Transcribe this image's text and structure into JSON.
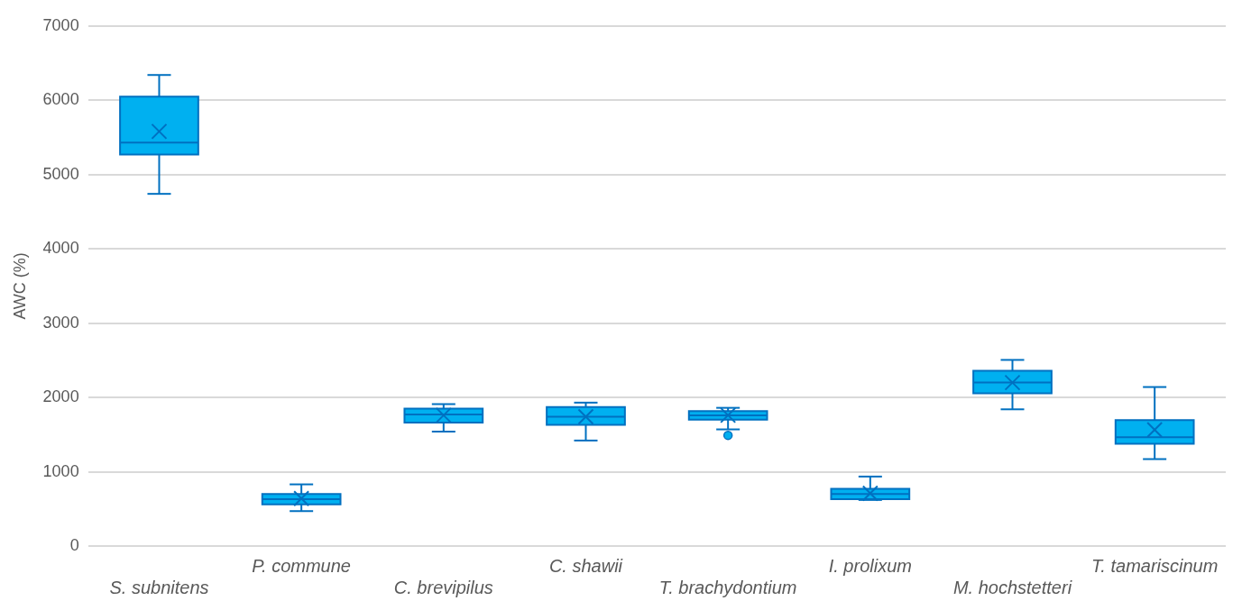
{
  "chart_data": {
    "type": "box",
    "ylabel": "AWC (%)",
    "categories": [
      "S. subnitens",
      "P. commune",
      "C. brevipilus",
      "C. shawii",
      "T. brachydontium",
      "I. prolixum",
      "M. hochstetteri",
      "T. tamariscinum"
    ],
    "boxes": [
      {
        "low": 4740,
        "q1": 5270,
        "median": 5430,
        "q3": 6050,
        "high": 6340,
        "mean": 5580
      },
      {
        "low": 470,
        "q1": 560,
        "median": 630,
        "q3": 700,
        "high": 830,
        "mean": 640
      },
      {
        "low": 1540,
        "q1": 1660,
        "median": 1770,
        "q3": 1850,
        "high": 1910,
        "mean": 1760
      },
      {
        "low": 1420,
        "q1": 1630,
        "median": 1740,
        "q3": 1870,
        "high": 1930,
        "mean": 1740
      },
      {
        "low": 1570,
        "q1": 1700,
        "median": 1760,
        "q3": 1815,
        "high": 1860,
        "mean": 1760,
        "outliers": [
          1490
        ]
      },
      {
        "low": 620,
        "q1": 630,
        "median": 700,
        "q3": 770,
        "high": 935,
        "mean": 710
      },
      {
        "low": 1840,
        "q1": 2055,
        "median": 2200,
        "q3": 2360,
        "high": 2505,
        "mean": 2200
      },
      {
        "low": 1170,
        "q1": 1375,
        "median": 1465,
        "q3": 1695,
        "high": 2140,
        "mean": 1565
      }
    ],
    "color": "#00b0f0",
    "ylim": [
      0,
      7000
    ],
    "yticks": [
      0,
      {
        "value": 1000,
        "label": "1000"
      },
      {
        "value": 2000,
        "label": "2000"
      },
      {
        "value": 3000,
        "label": "3000"
      },
      {
        "value": 4000,
        "label": "4000"
      },
      {
        "value": 5000,
        "label": "5000"
      },
      {
        "value": 6000,
        "label": "6000"
      },
      {
        "value": 7000,
        "label": "7000"
      }
    ],
    "grid": "y",
    "legend": false,
    "marker": "cross"
  }
}
